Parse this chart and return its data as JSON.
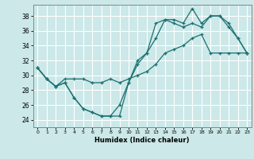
{
  "xlabel": "Humidex (Indice chaleur)",
  "bg_color": "#cce8e8",
  "grid_color": "#ffffff",
  "line_color": "#1a7070",
  "xlim": [
    -0.5,
    23.5
  ],
  "ylim": [
    23.0,
    39.5
  ],
  "yticks": [
    24,
    26,
    28,
    30,
    32,
    34,
    36,
    38
  ],
  "xticks": [
    0,
    1,
    2,
    3,
    4,
    5,
    6,
    7,
    8,
    9,
    10,
    11,
    12,
    13,
    14,
    15,
    16,
    17,
    18,
    19,
    20,
    21,
    22,
    23
  ],
  "line1_x": [
    0,
    1,
    2,
    3,
    4,
    5,
    6,
    7,
    8,
    9,
    10,
    11,
    12,
    13,
    14,
    15,
    16,
    17,
    18,
    19,
    20,
    21,
    22,
    23
  ],
  "line1_y": [
    31,
    29.5,
    28.5,
    29,
    27,
    25.5,
    25,
    24.5,
    24.5,
    24.5,
    29,
    32,
    33,
    37,
    37.5,
    37.5,
    37,
    39,
    37,
    38,
    38,
    37,
    35,
    33
  ],
  "line2_x": [
    0,
    1,
    2,
    3,
    4,
    5,
    6,
    7,
    8,
    9,
    10,
    11,
    12,
    13,
    14,
    15,
    16,
    17,
    18,
    19,
    20,
    21,
    22,
    23
  ],
  "line2_y": [
    31,
    29.5,
    28.5,
    29,
    27,
    25.5,
    25,
    24.5,
    24.5,
    26,
    29,
    31.5,
    33,
    35,
    37.5,
    37,
    36.5,
    37,
    36.5,
    38,
    38,
    36.5,
    35,
    33
  ],
  "line3_x": [
    0,
    1,
    2,
    3,
    4,
    5,
    6,
    7,
    8,
    9,
    10,
    11,
    12,
    13,
    14,
    15,
    16,
    17,
    18,
    19,
    20,
    21,
    22,
    23
  ],
  "line3_y": [
    31,
    29.5,
    28.5,
    29.5,
    29.5,
    29.5,
    29,
    29,
    29.5,
    29,
    29.5,
    30,
    30.5,
    31.5,
    33,
    33.5,
    34,
    35,
    35.5,
    33,
    33,
    33,
    33,
    33
  ]
}
